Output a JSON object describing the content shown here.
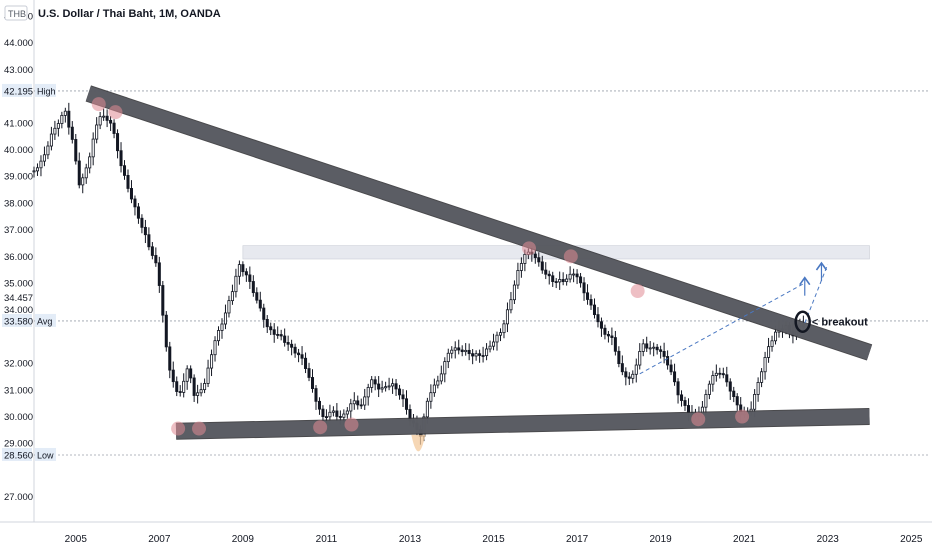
{
  "header": {
    "title": "U.S. Dollar / Thai Baht, 1M, OANDA",
    "currency_badge": "THB"
  },
  "colors": {
    "candle": "#131722",
    "channel_fill": "#5d5f66",
    "channel_stroke": "#2b2b2f",
    "zone_fill": "#e7e9ef",
    "touch_circle": "#e08a94",
    "low_spike": "#f3c99c",
    "projection": "#4a78c2",
    "ref_line": "#9aa0ab",
    "axis_text": "#131722"
  },
  "chart_data": {
    "type": "candlestick",
    "title": "U.S. Dollar / Thai Baht, 1M, OANDA",
    "timeframe": "1M",
    "x_range": [
      2004.0,
      2025.4
    ],
    "y_range": [
      26.05,
      45.6
    ],
    "x_ticks": [
      {
        "x": 2005,
        "label": "2005"
      },
      {
        "x": 2007,
        "label": "2007"
      },
      {
        "x": 2009,
        "label": "2009"
      },
      {
        "x": 2011,
        "label": "2011"
      },
      {
        "x": 2013,
        "label": "2013"
      },
      {
        "x": 2015,
        "label": "2015"
      },
      {
        "x": 2017,
        "label": "2017"
      },
      {
        "x": 2019,
        "label": "2019"
      },
      {
        "x": 2021,
        "label": "2021"
      },
      {
        "x": 2023,
        "label": "2023"
      },
      {
        "x": 2025,
        "label": "2025"
      }
    ],
    "y_ticks": [
      {
        "y": 45.0,
        "label": "45.000"
      },
      {
        "y": 44.0,
        "label": "44.000"
      },
      {
        "y": 43.0,
        "label": "43.000"
      },
      {
        "y": 41.0,
        "label": "41.000"
      },
      {
        "y": 40.0,
        "label": "40.000"
      },
      {
        "y": 39.0,
        "label": "39.000"
      },
      {
        "y": 38.0,
        "label": "38.000"
      },
      {
        "y": 37.0,
        "label": "37.000"
      },
      {
        "y": 36.0,
        "label": "36.000"
      },
      {
        "y": 35.0,
        "label": "35.000"
      },
      {
        "y": 34.457,
        "label": "34.457"
      },
      {
        "y": 34.0,
        "label": "34.000"
      },
      {
        "y": 32.0,
        "label": "32.000"
      },
      {
        "y": 31.0,
        "label": "31.000"
      },
      {
        "y": 30.0,
        "label": "30.000"
      },
      {
        "y": 29.0,
        "label": "29.000"
      },
      {
        "y": 27.0,
        "label": "27.000"
      }
    ],
    "price_markers": [
      {
        "y": 42.195,
        "value": "42.195",
        "tag": "High"
      },
      {
        "y": 33.58,
        "value": "33.580",
        "tag": "Avg"
      },
      {
        "y": 28.56,
        "value": "28.560",
        "tag": "Low"
      }
    ],
    "keypoints": [
      [
        2004.0,
        39.2
      ],
      [
        2004.2,
        39.5
      ],
      [
        2004.45,
        40.6
      ],
      [
        2004.75,
        41.5
      ],
      [
        2004.95,
        40.2
      ],
      [
        2005.1,
        38.6
      ],
      [
        2005.35,
        39.8
      ],
      [
        2005.55,
        41.2
      ],
      [
        2005.85,
        41.0
      ],
      [
        2006.1,
        39.4
      ],
      [
        2006.4,
        37.9
      ],
      [
        2006.75,
        36.3
      ],
      [
        2006.95,
        35.5
      ],
      [
        2007.05,
        34.3
      ],
      [
        2007.2,
        32.1
      ],
      [
        2007.45,
        30.8
      ],
      [
        2007.7,
        31.9
      ],
      [
        2007.85,
        30.6
      ],
      [
        2008.1,
        31.2
      ],
      [
        2008.3,
        32.7
      ],
      [
        2008.55,
        33.8
      ],
      [
        2008.75,
        34.8
      ],
      [
        2008.9,
        35.7
      ],
      [
        2009.1,
        35.2
      ],
      [
        2009.35,
        34.2
      ],
      [
        2009.6,
        33.3
      ],
      [
        2009.9,
        33.1
      ],
      [
        2010.2,
        32.5
      ],
      [
        2010.45,
        32.0
      ],
      [
        2010.7,
        30.8
      ],
      [
        2010.9,
        30.0
      ],
      [
        2011.15,
        30.3
      ],
      [
        2011.35,
        29.95
      ],
      [
        2011.65,
        30.5
      ],
      [
        2011.85,
        30.3
      ],
      [
        2012.05,
        31.4
      ],
      [
        2012.3,
        31.1
      ],
      [
        2012.55,
        31.3
      ],
      [
        2012.8,
        30.7
      ],
      [
        2013.0,
        29.8
      ],
      [
        2013.25,
        29.3
      ],
      [
        2013.45,
        30.9
      ],
      [
        2013.7,
        31.5
      ],
      [
        2013.95,
        32.5
      ],
      [
        2014.2,
        32.4
      ],
      [
        2014.5,
        32.3
      ],
      [
        2014.75,
        32.4
      ],
      [
        2014.95,
        32.8
      ],
      [
        2015.2,
        33.2
      ],
      [
        2015.4,
        34.2
      ],
      [
        2015.55,
        35.2
      ],
      [
        2015.75,
        36.1
      ],
      [
        2015.95,
        36.2
      ],
      [
        2016.2,
        35.5
      ],
      [
        2016.45,
        35.0
      ],
      [
        2016.7,
        35.0
      ],
      [
        2016.95,
        35.4
      ],
      [
        2017.15,
        34.8
      ],
      [
        2017.4,
        34.0
      ],
      [
        2017.6,
        33.2
      ],
      [
        2017.85,
        32.8
      ],
      [
        2018.05,
        31.6
      ],
      [
        2018.3,
        31.4
      ],
      [
        2018.55,
        32.8
      ],
      [
        2018.75,
        32.6
      ],
      [
        2018.95,
        32.5
      ],
      [
        2019.2,
        31.8
      ],
      [
        2019.45,
        30.7
      ],
      [
        2019.7,
        30.2
      ],
      [
        2019.95,
        30.1
      ],
      [
        2020.2,
        31.4
      ],
      [
        2020.45,
        31.6
      ],
      [
        2020.7,
        30.9
      ],
      [
        2020.95,
        30.1
      ],
      [
        2021.15,
        30.3
      ],
      [
        2021.4,
        31.6
      ],
      [
        2021.6,
        32.6
      ],
      [
        2021.8,
        33.2
      ],
      [
        2022.0,
        33.4
      ],
      [
        2022.15,
        33.1
      ],
      [
        2022.3,
        33.6
      ],
      [
        2022.45,
        33.4
      ]
    ],
    "upper_trendline": {
      "from": [
        2005.3,
        42.1
      ],
      "to": [
        2024.0,
        32.4
      ],
      "label": ""
    },
    "lower_trendline": {
      "from": [
        2007.4,
        29.45
      ],
      "to": [
        2024.0,
        30.0
      ],
      "label": ""
    },
    "resistance_zone": {
      "x": [
        2009.0,
        2024.0
      ],
      "y": [
        35.9,
        36.4
      ]
    },
    "touch_points": [
      [
        2005.55,
        41.7
      ],
      [
        2005.95,
        41.4
      ],
      [
        2007.45,
        29.55
      ],
      [
        2007.95,
        29.55
      ],
      [
        2010.85,
        29.6
      ],
      [
        2011.6,
        29.7
      ],
      [
        2015.85,
        36.3
      ],
      [
        2016.85,
        36.0
      ],
      [
        2018.45,
        34.7
      ],
      [
        2019.9,
        29.9
      ],
      [
        2020.95,
        30.0
      ]
    ],
    "low_spike_point": [
      2013.2,
      29.2
    ],
    "projection_lines": [
      {
        "from": [
          2018.5,
          31.6
        ],
        "to": [
          2022.45,
          35.0
        ]
      },
      {
        "from": [
          2022.45,
          33.5
        ],
        "to": [
          2023.0,
          35.7
        ]
      }
    ],
    "projection_arrows": [
      [
        2022.45,
        35.2
      ],
      [
        2022.85,
        35.75
      ]
    ],
    "breakout_circle": [
      2022.4,
      33.55
    ],
    "annotations": [
      {
        "text": "< breakout",
        "x": 2022.62,
        "y": 33.55
      }
    ]
  }
}
